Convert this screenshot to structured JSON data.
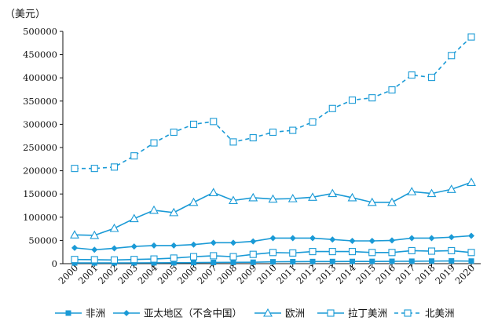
{
  "chart_data": {
    "type": "line",
    "unit_label": "（美元）",
    "x": [
      "2000",
      "2001",
      "2002",
      "2003",
      "2004",
      "2005",
      "2006",
      "2007",
      "2008",
      "2009",
      "2010",
      "2011",
      "2012",
      "2013",
      "2014",
      "2015",
      "2016",
      "2017",
      "2018",
      "2019",
      "2020"
    ],
    "y_ticks": [
      "0",
      "50000",
      "100000",
      "150000",
      "200000",
      "250000",
      "300000",
      "350000",
      "400000",
      "450000",
      "500000"
    ],
    "ylim": [
      0,
      500000
    ],
    "grid": false,
    "legend_position": "bottom",
    "color": "#1a9ad6",
    "series": [
      {
        "name": "非洲",
        "marker": "square-filled",
        "dash": false,
        "values": [
          1500,
          1500,
          1600,
          1700,
          1800,
          2000,
          2300,
          2600,
          2800,
          3000,
          4000,
          4300,
          4500,
          4600,
          4700,
          4800,
          5000,
          5200,
          5500,
          5800,
          5500
        ]
      },
      {
        "name": "亚太地区（不含中国）",
        "marker": "diamond-filled",
        "dash": false,
        "values": [
          34000,
          30000,
          33000,
          37000,
          39000,
          39000,
          41000,
          45000,
          45000,
          48000,
          55000,
          55000,
          55000,
          52000,
          49000,
          49000,
          50000,
          55000,
          55000,
          57000,
          60000
        ]
      },
      {
        "name": "欧洲",
        "marker": "triangle-open",
        "dash": false,
        "values": [
          62000,
          61000,
          76000,
          97000,
          115000,
          110000,
          132000,
          153000,
          136000,
          142000,
          139000,
          140000,
          143000,
          151000,
          142000,
          132000,
          132000,
          155000,
          151000,
          160000,
          175000
        ]
      },
      {
        "name": "拉丁美洲",
        "marker": "square-open",
        "dash": false,
        "values": [
          9000,
          8500,
          8000,
          9000,
          10000,
          12000,
          15000,
          17000,
          15000,
          20000,
          24000,
          23000,
          26000,
          26000,
          26000,
          24000,
          24000,
          28000,
          27000,
          28000,
          24000
        ]
      },
      {
        "name": "北美洲",
        "marker": "square-open",
        "dash": true,
        "values": [
          205000,
          205000,
          208000,
          232000,
          260000,
          283000,
          300000,
          306000,
          262000,
          271000,
          283000,
          287000,
          305000,
          334000,
          352000,
          357000,
          374000,
          406000,
          401000,
          448000,
          488000
        ]
      }
    ]
  }
}
